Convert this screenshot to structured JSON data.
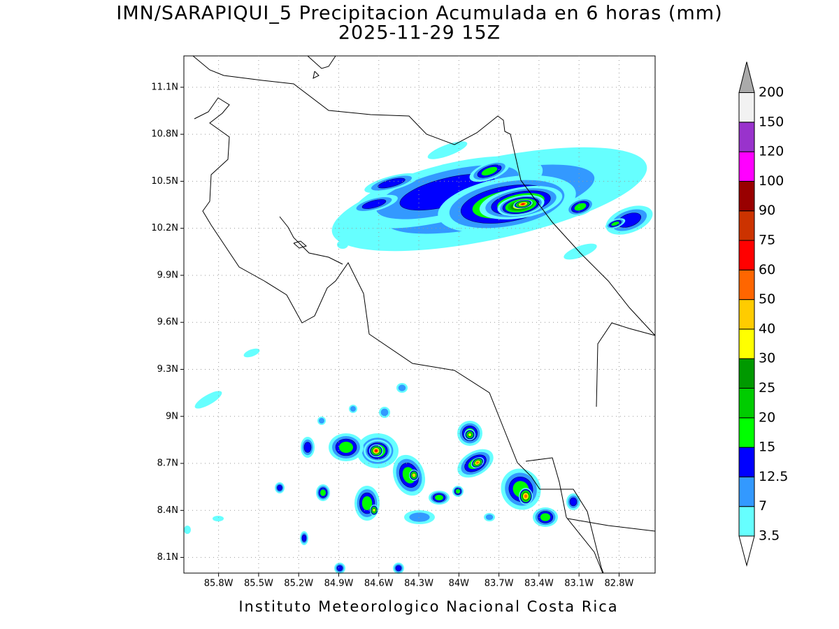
{
  "chart_data": {
    "type": "map",
    "title": "IMN/SARAPIQUI_5 Precipitacion Acumulada en 6 horas (mm)",
    "subtitle": "2025-11-29 15Z",
    "footer": "Instituto Meteorologico Nacional Costa Rica",
    "xlim": [
      -86.06,
      -82.53
    ],
    "ylim": [
      8.0,
      11.3
    ],
    "grid": true,
    "xticks": [
      {
        "value": -85.8,
        "label": "85.8W"
      },
      {
        "value": -85.5,
        "label": "85.5W"
      },
      {
        "value": -85.2,
        "label": "85.2W"
      },
      {
        "value": -84.9,
        "label": "84.9W"
      },
      {
        "value": -84.6,
        "label": "84.6W"
      },
      {
        "value": -84.3,
        "label": "84.3W"
      },
      {
        "value": -84.0,
        "label": "84W"
      },
      {
        "value": -83.7,
        "label": "83.7W"
      },
      {
        "value": -83.4,
        "label": "83.4W"
      },
      {
        "value": -83.1,
        "label": "83.1W"
      },
      {
        "value": -82.8,
        "label": "82.8W"
      }
    ],
    "yticks": [
      {
        "value": 8.1,
        "label": "8.1N"
      },
      {
        "value": 8.4,
        "label": "8.4N"
      },
      {
        "value": 8.7,
        "label": "8.7N"
      },
      {
        "value": 9.0,
        "label": "9N"
      },
      {
        "value": 9.3,
        "label": "9.3N"
      },
      {
        "value": 9.6,
        "label": "9.6N"
      },
      {
        "value": 9.9,
        "label": "9.9N"
      },
      {
        "value": 10.2,
        "label": "10.2N"
      },
      {
        "value": 10.5,
        "label": "10.5N"
      },
      {
        "value": 10.8,
        "label": "10.8N"
      },
      {
        "value": 11.1,
        "label": "11.1N"
      }
    ],
    "colorbar": {
      "levels": [
        3.5,
        7,
        12.5,
        15,
        20,
        25,
        30,
        40,
        50,
        60,
        75,
        90,
        100,
        120,
        150,
        200
      ],
      "colors": [
        "#ffffff",
        "#66ffff",
        "#3399ff",
        "#0000ff",
        "#00ff00",
        "#00cc00",
        "#009900",
        "#ffff00",
        "#ffcc00",
        "#ff6600",
        "#ff0000",
        "#cc3300",
        "#990000",
        "#ff00ff",
        "#9933cc",
        "#f2f2f2",
        "#aaaaaa"
      ]
    }
  }
}
